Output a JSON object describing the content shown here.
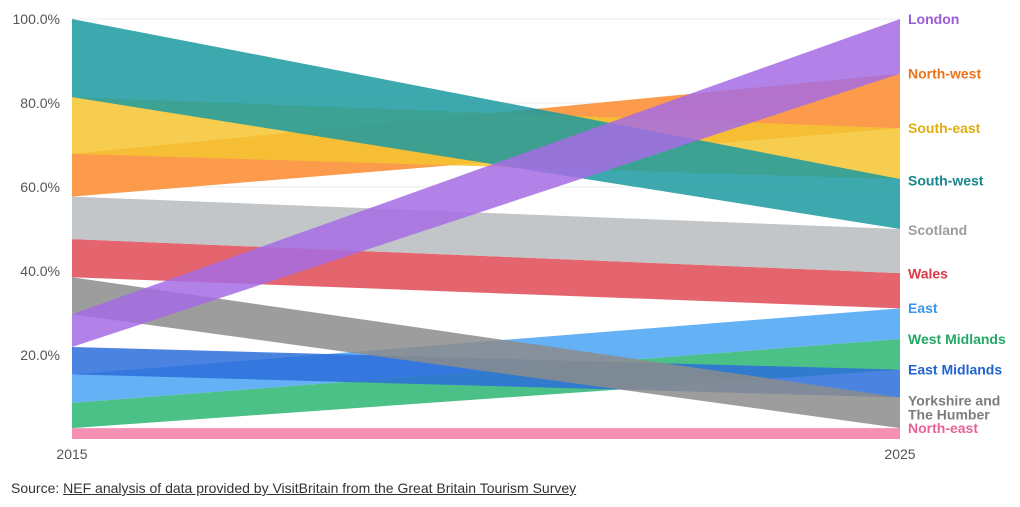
{
  "chart_data": {
    "type": "area",
    "x": [
      "2015",
      "2025"
    ],
    "ylim": [
      0,
      100
    ],
    "yticks": [
      "20.0%",
      "40.0%",
      "60.0%",
      "80.0%",
      "100.0%"
    ],
    "ytick_values": [
      20,
      40,
      60,
      80,
      100
    ],
    "grid": true,
    "series": [
      {
        "name": "North-east",
        "color": "#f47ba7",
        "values": [
          [
            0,
            2.6
          ],
          [
            0,
            2.6
          ]
        ]
      },
      {
        "name": "West Midlands",
        "color": "#2bb673",
        "values": [
          [
            2.6,
            8.6
          ],
          [
            16.5,
            23.8
          ]
        ]
      },
      {
        "name": "East",
        "color": "#4aa3f5",
        "values": [
          [
            8.6,
            15.4
          ],
          [
            23.8,
            31.1
          ]
        ]
      },
      {
        "name": "East Midlands",
        "color": "#2b6fdb",
        "values": [
          [
            15.4,
            21.9
          ],
          [
            9.9,
            16.5
          ]
        ]
      },
      {
        "name": "Yorkshire and The Humber",
        "color": "#8c8c8c",
        "values": [
          [
            29.7,
            38.5
          ],
          [
            2.6,
            9.9
          ]
        ]
      },
      {
        "name": "Wales",
        "color": "#e14a55",
        "values": [
          [
            38.5,
            47.6
          ],
          [
            31.1,
            39.5
          ]
        ]
      },
      {
        "name": "Scotland",
        "color": "#b8bcc0",
        "values": [
          [
            47.6,
            57.7
          ],
          [
            39.5,
            50.0
          ]
        ]
      },
      {
        "name": "North-west",
        "color": "#fb8a2d",
        "values": [
          [
            57.7,
            67.9
          ],
          [
            74.0,
            87.0
          ]
        ]
      },
      {
        "name": "South-east",
        "color": "#f4c430",
        "values": [
          [
            67.9,
            81.4
          ],
          [
            61.9,
            74.0
          ]
        ]
      },
      {
        "name": "South-west",
        "color": "#1b9aa0",
        "values": [
          [
            81.4,
            100.0
          ],
          [
            50.0,
            61.9
          ]
        ]
      },
      {
        "name": "London",
        "color": "#a66ce4",
        "values": [
          [
            21.9,
            29.7
          ],
          [
            87.0,
            100.0
          ]
        ]
      }
    ],
    "labels": [
      {
        "text": [
          "London"
        ],
        "color": "#9a5bd9",
        "value": 100.0
      },
      {
        "text": [
          "North-west"
        ],
        "color": "#e8731b",
        "value": 87.0
      },
      {
        "text": [
          "South-east"
        ],
        "color": "#e0ad10",
        "value": 74.0
      },
      {
        "text": [
          "South-west"
        ],
        "color": "#16868b",
        "value": 61.6
      },
      {
        "text": [
          "Scotland"
        ],
        "color": "#9a9ea3",
        "value": 49.8
      },
      {
        "text": [
          "Wales"
        ],
        "color": "#d93a45",
        "value": 39.4
      },
      {
        "text": [
          "East"
        ],
        "color": "#3b95ea",
        "value": 31.2
      },
      {
        "text": [
          "West Midlands"
        ],
        "color": "#22a866",
        "value": 23.8
      },
      {
        "text": [
          "East Midlands"
        ],
        "color": "#1f63d0",
        "value": 16.5
      },
      {
        "text": [
          "Yorkshire and",
          "The Humber"
        ],
        "color": "#7d7d7d",
        "value": 9.2
      },
      {
        "text": [
          "North-east"
        ],
        "color": "#e96295",
        "value": 2.6
      }
    ]
  },
  "source": {
    "prefix": "Source: ",
    "link_text": "NEF analysis of data provided by VisitBritain from the Great Britain Tourism Survey"
  }
}
